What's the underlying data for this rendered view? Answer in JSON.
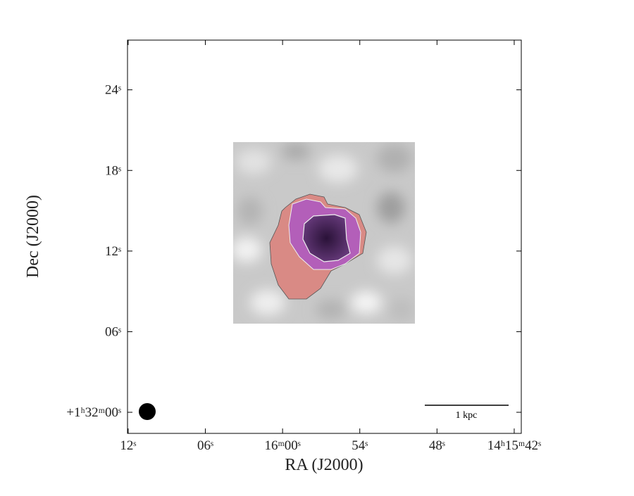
{
  "chart_data": {
    "type": "image",
    "xlabel": "RA (J2000)",
    "ylabel": "Dec (J2000)",
    "xlim": [
      72.05,
      41.45
    ],
    "xticks": [
      {
        "value": 72,
        "label": "12ˢ"
      },
      {
        "value": 66,
        "label": "06ˢ"
      },
      {
        "value": 60,
        "label": "16ᵐ00ˢ"
      },
      {
        "value": 54,
        "label": "54ˢ"
      },
      {
        "value": 48,
        "label": "48ˢ"
      },
      {
        "value": 42,
        "label": "14ʰ15ᵐ42ˢ"
      }
    ],
    "ylim": [
      -1.57,
      27.7
    ],
    "yticks": [
      {
        "value": 0,
        "label": "+1ʰ32ᵐ00ˢ"
      },
      {
        "value": 6,
        "label": "06ˢ"
      },
      {
        "value": 12,
        "label": "12ˢ"
      },
      {
        "value": 18,
        "label": "18ˢ"
      },
      {
        "value": 24,
        "label": "24ˢ"
      }
    ],
    "scale_bar_label": "1 kpc"
  }
}
